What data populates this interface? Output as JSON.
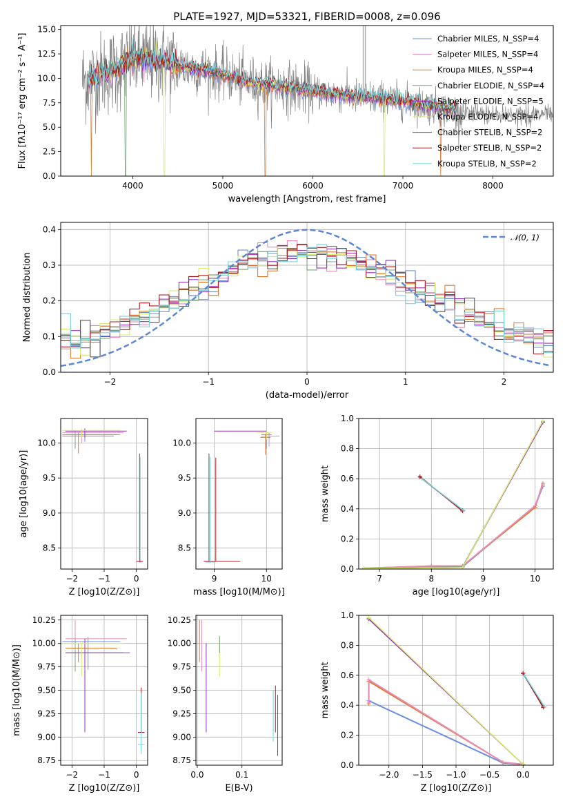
{
  "figure": {
    "title": "PLATE=1927, MJD=53321, FIBERID=0008, z=0.096"
  },
  "colors": {
    "chabrier_miles": "#6a8ee0",
    "salpeter_miles": "#e88ab6",
    "kroupa_miles": "#e07a2c",
    "chabrier_elodie": "#7aa37a",
    "salpeter_elodie": "#9b2fbf",
    "kroupa_elodie": "#d8ec6c",
    "chabrier_stelib": "#555555",
    "salpeter_stelib": "#b3181e",
    "kroupa_stelib": "#73d3dd",
    "data_spectrum": "#808080",
    "normal_curve": "#5b86d6"
  },
  "chart_data": [
    {
      "type": "line",
      "id": "spectrum",
      "xlabel": "wavelength [Angstrom, rest frame]",
      "ylabel": "Flux [fλ10⁻¹⁷ erg cm⁻² s⁻¹ A⁻¹]",
      "xlim": [
        3200,
        8670
      ],
      "ylim": [
        0,
        15.4
      ],
      "xticks": [
        "4000",
        "5000",
        "6000",
        "7000",
        "8000"
      ],
      "yticks": [
        "0.0",
        "2.5",
        "5.0",
        "7.5",
        "10.0",
        "12.5",
        "15.0"
      ],
      "legend_position": "top-right",
      "legend": [
        "Chabrier MILES, N_SSP=4",
        "Salpeter MILES, N_SSP=4",
        "Kroupa MILES, N_SSP=4",
        "Chabrier ELODIE, N_SSP=4",
        "Salpeter ELODIE, N_SSP=5",
        "Kroupa ELODIE, N_SSP=4",
        "Chabrier STELIB, N_SSP=2",
        "Salpeter STELIB, N_SSP=2",
        "Kroupa STELIB, N_SSP=2"
      ],
      "continuum_model": {
        "x": [
          3500,
          3600,
          3700,
          3800,
          4000,
          4200,
          4500,
          4800,
          5000,
          5300,
          5600,
          6000,
          6500,
          7000,
          7400,
          7600
        ],
        "y": [
          9.8,
          10.2,
          10.6,
          10.8,
          12.0,
          11.9,
          11.3,
          10.8,
          10.4,
          9.6,
          9.2,
          8.7,
          8.1,
          7.7,
          7.0,
          6.6
        ]
      },
      "data_extent": [
        3440,
        8670
      ],
      "model_extent": [
        3500,
        7600
      ]
    },
    {
      "type": "line",
      "id": "residuals",
      "xlabel": "(data-model)/error",
      "ylabel": "Normed distribution",
      "xlim": [
        -2.5,
        2.5
      ],
      "ylim": [
        0,
        0.42
      ],
      "xticks": [
        "−2",
        "−1",
        "0",
        "1",
        "2"
      ],
      "yticks": [
        "0.0",
        "0.1",
        "0.2",
        "0.3",
        "0.4"
      ],
      "grid": true,
      "legend_position": "top-right",
      "reference_curve": {
        "name": "𝒩(0, 1)",
        "mean": 0,
        "sigma": 1
      },
      "histogram_bin_width": 0.1
    },
    {
      "type": "scatter",
      "id": "age_vs_Z",
      "xlabel": "Z [log10(Z/Z⊙)]",
      "ylabel": "age  [log10(age/yr)]",
      "xlim": [
        -2.35,
        0.35
      ],
      "ylim": [
        8.2,
        10.35
      ],
      "xticks": [
        "−2",
        "−1",
        "0"
      ],
      "yticks": [
        "8.5",
        "9.0",
        "9.5",
        "10.0"
      ],
      "grid": true
    },
    {
      "type": "scatter",
      "id": "age_vs_mass",
      "xlabel": "mass [log10(M/M⊙)]",
      "ylabel": "",
      "xlim": [
        8.65,
        10.3
      ],
      "ylim": [
        8.2,
        10.35
      ],
      "xticks": [
        "9",
        "10"
      ],
      "yticks": [
        "8.5",
        "9.0",
        "9.5",
        "10.0"
      ],
      "grid": true
    },
    {
      "type": "line",
      "id": "weight_vs_age",
      "xlabel": "age  [log10(age/yr)]",
      "ylabel": "mass weight",
      "xlim": [
        6.6,
        10.35
      ],
      "ylim": [
        0,
        1.0
      ],
      "xticks": [
        "7",
        "8",
        "9",
        "10"
      ],
      "yticks": [
        "0.0",
        "0.2",
        "0.4",
        "0.6",
        "0.8",
        "1.0"
      ],
      "grid": true,
      "series": [
        {
          "key": "chabrier_miles",
          "x": [
            6.7,
            8.0,
            8.6,
            10.0,
            10.15
          ],
          "y": [
            0.005,
            0.015,
            0.015,
            0.42,
            0.55
          ]
        },
        {
          "key": "kroupa_miles",
          "x": [
            6.7,
            8.0,
            8.6,
            10.0,
            10.15
          ],
          "y": [
            0.005,
            0.02,
            0.02,
            0.41,
            0.57
          ]
        },
        {
          "key": "salpeter_miles",
          "x": [
            6.7,
            8.0,
            8.6,
            10.0,
            10.15
          ],
          "y": [
            0.005,
            0.02,
            0.02,
            0.42,
            0.56
          ]
        },
        {
          "key": "chabrier_stelib",
          "x": [
            7.78,
            8.6
          ],
          "y": [
            0.61,
            0.39
          ]
        },
        {
          "key": "salpeter_stelib",
          "x": [
            7.78,
            8.6
          ],
          "y": [
            0.615,
            0.385
          ]
        },
        {
          "key": "kroupa_stelib",
          "x": [
            7.82,
            8.62
          ],
          "y": [
            0.6,
            0.39
          ]
        },
        {
          "key": "chabrier_elodie",
          "x": [
            6.7,
            8.6,
            10.15
          ],
          "y": [
            0.005,
            0.015,
            0.98
          ]
        },
        {
          "key": "salpeter_elodie",
          "x": [
            6.7,
            8.6,
            10.15
          ],
          "y": [
            0.005,
            0.01,
            0.975
          ]
        },
        {
          "key": "kroupa_elodie",
          "x": [
            6.7,
            8.6,
            10.15
          ],
          "y": [
            0.005,
            0.01,
            0.985
          ]
        }
      ]
    },
    {
      "type": "scatter",
      "id": "mass_vs_Z",
      "xlabel": "Z [log10(Z/Z⊙)]",
      "ylabel": "mass [log10(M/M⊙)]",
      "xlim": [
        -2.35,
        0.35
      ],
      "ylim": [
        8.7,
        10.3
      ],
      "xticks": [
        "−2",
        "−1",
        "0"
      ],
      "yticks": [
        "8.75",
        "9.00",
        "9.25",
        "9.50",
        "9.75",
        "10.00",
        "10.25"
      ],
      "grid": true
    },
    {
      "type": "scatter",
      "id": "mass_vs_ebv",
      "xlabel": "E(B-V)",
      "ylabel": "",
      "xlim": [
        -0.003,
        0.19
      ],
      "ylim": [
        8.7,
        10.3
      ],
      "xticks": [
        "0.0",
        "0.1"
      ],
      "yticks": [
        "8.75",
        "9.00",
        "9.25",
        "9.50",
        "9.75",
        "10.00",
        "10.25"
      ],
      "grid": true
    },
    {
      "type": "line",
      "id": "weight_vs_Z",
      "xlabel": "Z [log10(Z/Z⊙)]",
      "ylabel": "mass weight",
      "xlim": [
        -2.45,
        0.45
      ],
      "ylim": [
        0,
        1.0
      ],
      "xticks": [
        "−2.0",
        "−1.5",
        "−1.0",
        "−0.5",
        "0.0"
      ],
      "yticks": [
        "0.0",
        "0.2",
        "0.4",
        "0.6",
        "0.8",
        "1.0"
      ],
      "grid": true,
      "series": [
        {
          "key": "chabrier_miles",
          "x": [
            -2.3,
            -0.3,
            0.0
          ],
          "y": [
            0.43,
            0.015,
            0.005
          ]
        },
        {
          "key": "kroupa_miles",
          "x": [
            -2.3,
            -2.3,
            -0.3,
            0.0
          ],
          "y": [
            0.41,
            0.56,
            0.02,
            0.005
          ]
        },
        {
          "key": "salpeter_miles",
          "x": [
            -2.3,
            -2.3,
            -0.3,
            0.0
          ],
          "y": [
            0.42,
            0.57,
            0.02,
            0.005
          ]
        },
        {
          "key": "chabrier_stelib",
          "x": [
            0.0,
            0.3
          ],
          "y": [
            0.61,
            0.39
          ]
        },
        {
          "key": "salpeter_stelib",
          "x": [
            0.0,
            0.3
          ],
          "y": [
            0.615,
            0.385
          ]
        },
        {
          "key": "kroupa_stelib",
          "x": [
            0.02,
            0.32
          ],
          "y": [
            0.6,
            0.39
          ]
        },
        {
          "key": "chabrier_elodie",
          "x": [
            -2.3,
            0.0
          ],
          "y": [
            0.98,
            0.005
          ]
        },
        {
          "key": "salpeter_elodie",
          "x": [
            -2.3,
            0.0
          ],
          "y": [
            0.975,
            0.005
          ]
        },
        {
          "key": "kroupa_elodie",
          "x": [
            -2.3,
            0.0
          ],
          "y": [
            0.985,
            0.005
          ]
        }
      ]
    }
  ]
}
